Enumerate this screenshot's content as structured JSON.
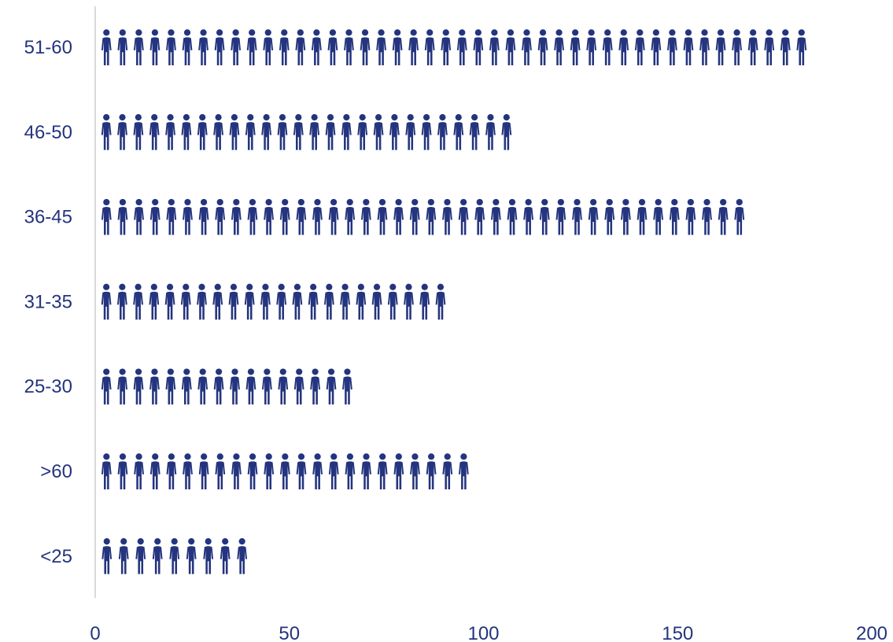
{
  "chart_data": {
    "type": "bar",
    "orientation": "horizontal",
    "style": "pictograph (person icons)",
    "categories": [
      "51-60",
      "46-50",
      "36-45",
      "31-35",
      "25-30",
      ">60",
      "<25"
    ],
    "values": [
      184,
      108,
      168,
      91,
      67,
      97,
      40
    ],
    "xlim": [
      0,
      200
    ],
    "xticks": [
      0,
      50,
      100,
      150,
      200
    ],
    "title": "",
    "xlabel": "",
    "ylabel": "",
    "grid": false,
    "legend": "none",
    "colors": {
      "icon": "#24347e",
      "text": "#24347e",
      "axis": "#d9d9d9"
    }
  }
}
